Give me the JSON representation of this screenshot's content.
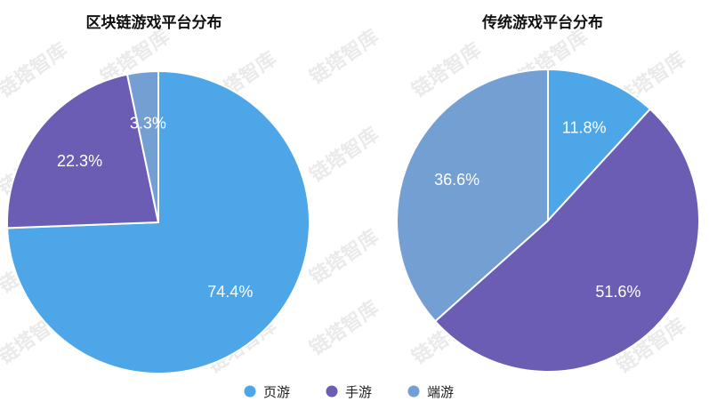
{
  "watermark": "链塔智库",
  "colors": {
    "页游": "#4da6e8",
    "手游": "#6a5db3",
    "端游": "#749fd3"
  },
  "chart_data": [
    {
      "type": "pie",
      "title": "区块链游戏平台分布",
      "slices": [
        {
          "name": "页游",
          "value": 74.4,
          "label": "74.4%"
        },
        {
          "name": "手游",
          "value": 22.3,
          "label": "22.3%"
        },
        {
          "name": "端游",
          "value": 3.3,
          "label": "3.3%"
        }
      ]
    },
    {
      "type": "pie",
      "title": "传统游戏平台分布",
      "slices": [
        {
          "name": "页游",
          "value": 11.8,
          "label": "11.8%"
        },
        {
          "name": "手游",
          "value": 51.6,
          "label": "51.6%"
        },
        {
          "name": "端游",
          "value": 36.6,
          "label": "36.6%"
        }
      ]
    }
  ],
  "legend": [
    "页游",
    "手游",
    "端游"
  ]
}
